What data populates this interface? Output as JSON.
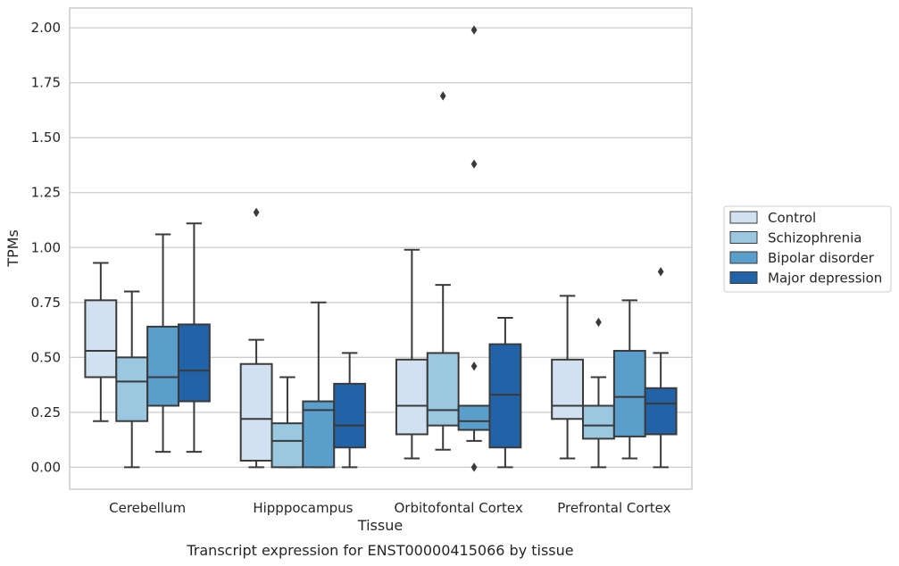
{
  "chart_data": {
    "type": "box",
    "title": "",
    "caption": "Transcript expression for ENST00000415066 by tissue",
    "xlabel": "Tissue",
    "ylabel": "TPMs",
    "ylim": [
      -0.1,
      2.09
    ],
    "yticks": [
      "0.00",
      "0.25",
      "0.50",
      "0.75",
      "1.00",
      "1.25",
      "1.50",
      "1.75",
      "2.00"
    ],
    "grid": true,
    "legend_position": "right",
    "categories": [
      "Cerebellum",
      "Hipppocampus",
      "Orbitofontal Cortex",
      "Prefrontal Cortex"
    ],
    "series": [
      {
        "name": "Control",
        "color": "#d1e1f1",
        "boxes": [
          {
            "whisker_low": 0.21,
            "q1": 0.41,
            "median": 0.53,
            "q3": 0.76,
            "whisker_high": 0.93,
            "outliers": []
          },
          {
            "whisker_low": 0.0,
            "q1": 0.03,
            "median": 0.22,
            "q3": 0.47,
            "whisker_high": 0.58,
            "outliers": [
              1.16
            ]
          },
          {
            "whisker_low": 0.04,
            "q1": 0.15,
            "median": 0.28,
            "q3": 0.49,
            "whisker_high": 0.99,
            "outliers": []
          },
          {
            "whisker_low": 0.04,
            "q1": 0.22,
            "median": 0.28,
            "q3": 0.49,
            "whisker_high": 0.78,
            "outliers": []
          }
        ]
      },
      {
        "name": "Schizophrenia",
        "color": "#9ac8e0",
        "boxes": [
          {
            "whisker_low": 0.0,
            "q1": 0.21,
            "median": 0.39,
            "q3": 0.5,
            "whisker_high": 0.8,
            "outliers": []
          },
          {
            "whisker_low": 0.0,
            "q1": 0.0,
            "median": 0.12,
            "q3": 0.2,
            "whisker_high": 0.41,
            "outliers": []
          },
          {
            "whisker_low": 0.08,
            "q1": 0.19,
            "median": 0.26,
            "q3": 0.52,
            "whisker_high": 0.83,
            "outliers": [
              1.69
            ]
          },
          {
            "whisker_low": 0.0,
            "q1": 0.13,
            "median": 0.19,
            "q3": 0.28,
            "whisker_high": 0.41,
            "outliers": [
              0.66
            ]
          }
        ]
      },
      {
        "name": "Bipolar disorder",
        "color": "#5a9ecb",
        "boxes": [
          {
            "whisker_low": 0.07,
            "q1": 0.28,
            "median": 0.41,
            "q3": 0.64,
            "whisker_high": 1.06,
            "outliers": []
          },
          {
            "whisker_low": 0.0,
            "q1": 0.0,
            "median": 0.26,
            "q3": 0.3,
            "whisker_high": 0.75,
            "outliers": []
          },
          {
            "whisker_low": 0.12,
            "q1": 0.17,
            "median": 0.21,
            "q3": 0.28,
            "whisker_high": 0.28,
            "outliers": [
              0.0,
              0.46,
              1.38,
              1.99
            ]
          },
          {
            "whisker_low": 0.04,
            "q1": 0.14,
            "median": 0.32,
            "q3": 0.53,
            "whisker_high": 0.76,
            "outliers": []
          }
        ]
      },
      {
        "name": "Major depression",
        "color": "#2263a8",
        "boxes": [
          {
            "whisker_low": 0.07,
            "q1": 0.3,
            "median": 0.44,
            "q3": 0.65,
            "whisker_high": 1.11,
            "outliers": []
          },
          {
            "whisker_low": 0.0,
            "q1": 0.09,
            "median": 0.19,
            "q3": 0.38,
            "whisker_high": 0.52,
            "outliers": []
          },
          {
            "whisker_low": 0.0,
            "q1": 0.09,
            "median": 0.33,
            "q3": 0.56,
            "whisker_high": 0.68,
            "outliers": []
          },
          {
            "whisker_low": 0.0,
            "q1": 0.15,
            "median": 0.29,
            "q3": 0.36,
            "whisker_high": 0.52,
            "outliers": [
              0.89
            ]
          }
        ]
      }
    ]
  }
}
